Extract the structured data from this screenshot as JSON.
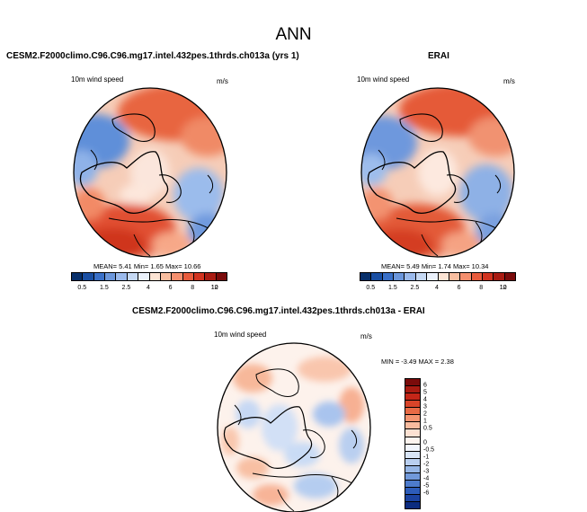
{
  "title": "ANN",
  "colors": {
    "levels_abs": [
      "#08306b",
      "#1a4fa3",
      "#3a70c8",
      "#6b96db",
      "#9bbaec",
      "#c6d9f4",
      "#ebf1fb",
      "#fde4d4",
      "#f9bea0",
      "#f48f6e",
      "#e85b3c",
      "#d1331f",
      "#a91b12",
      "#7a0b0b"
    ],
    "levels_diff": [
      "#7a0b0b",
      "#a91b12",
      "#c42618",
      "#d84429",
      "#e86a45",
      "#f49470",
      "#f9bb9e",
      "#fde1d2",
      "#fdf4ef",
      "#f2f6fd",
      "#d8e5f7",
      "#b9cff0",
      "#96b6e6",
      "#7199da",
      "#4d7bcc",
      "#2d5cb9",
      "#1c43a0",
      "#0c2c80"
    ]
  },
  "panel1": {
    "title": "CESM2.F2000climo.C96.C96.mg17.intel.432pes.1thrds.ch013a (yrs 1)",
    "variable": "10m wind speed",
    "units": "m/s",
    "stats": "MEAN=   5.41  Min=   1.65  Max=  10.66",
    "ticks": [
      "0.5",
      "1.5",
      "2.5",
      "4",
      "6",
      "8",
      "10",
      "12"
    ]
  },
  "panel2": {
    "title": "ERAI",
    "variable": "10m wind speed",
    "units": "m/s",
    "stats": "MEAN=   5.49  Min=   1.74  Max=  10.34",
    "ticks": [
      "0.5",
      "1.5",
      "2.5",
      "4",
      "6",
      "8",
      "10",
      "12"
    ]
  },
  "panel3": {
    "title": "CESM2.F2000climo.C96.C96.mg17.intel.432pes.1thrds.ch013a - ERAI",
    "variable": "10m wind speed",
    "units": "m/s",
    "stats": "MIN =  -3.49 MAX =   2.38",
    "ticks": [
      "6",
      "5",
      "4",
      "3",
      "2",
      "1",
      "0.5",
      "0",
      "-0.5",
      "-1",
      "-2",
      "-3",
      "-4",
      "-5",
      "-6"
    ]
  }
}
